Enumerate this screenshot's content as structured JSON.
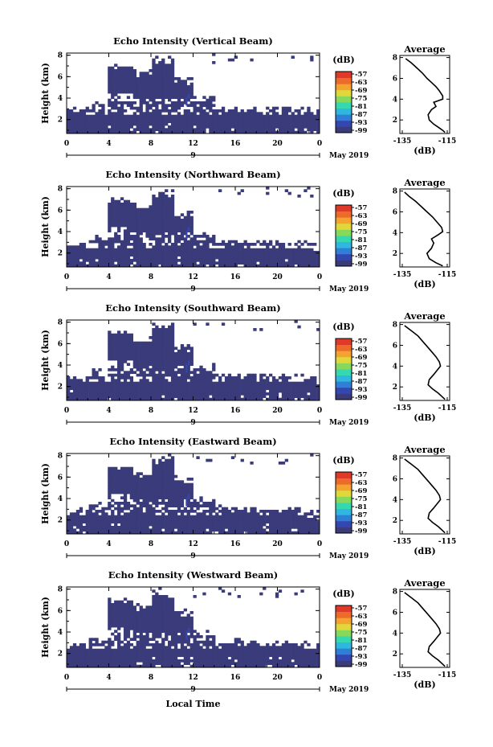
{
  "figure": {
    "xlabel": "Local Time",
    "ylabel": "Height (km)",
    "date_label": "May 2019",
    "colorbar_title": "(dB)",
    "avg_title": "Average",
    "avg_xlabel": "(dB)"
  },
  "colors": {
    "echo": "#3a3b7a",
    "colormap": [
      "#3a3b7a",
      "#3447b0",
      "#2f7fd6",
      "#2fb7e0",
      "#36d8b0",
      "#86d95a",
      "#e0d83a",
      "#f4a230",
      "#ec6a2a",
      "#de3a2a"
    ]
  },
  "chart_data": [
    {
      "type": "heatmap",
      "title": "Echo Intensity (Vertical Beam)",
      "x_ticks": [
        "0",
        "4",
        "8",
        "12",
        "16",
        "20",
        "0"
      ],
      "x_range": [
        0,
        24
      ],
      "day_label": "9",
      "y_ticks": [
        "2",
        "4",
        "6",
        "8"
      ],
      "y_range": [
        0.7,
        8.2
      ],
      "colorbar_ticks": [
        "-57",
        "-63",
        "-69",
        "-75",
        "-81",
        "-87",
        "-93",
        "-99"
      ],
      "average_profile": {
        "x_range": [
          -135,
          -115
        ],
        "x_ticks": [
          "-135",
          "-115"
        ],
        "y_ticks": [
          "2",
          "4",
          "6",
          "8"
        ],
        "y_range": [
          0.7,
          8.2
        ],
        "heights": [
          0.8,
          1.0,
          1.3,
          1.6,
          2.0,
          2.5,
          3.0,
          3.3,
          3.7,
          4.0,
          4.3,
          4.8,
          5.2,
          5.6,
          6.0,
          6.5,
          7.0,
          7.5,
          7.9
        ],
        "values": [
          -116,
          -117,
          -119,
          -121,
          -123,
          -123.5,
          -122,
          -120,
          -121,
          -117,
          -117,
          -118.5,
          -120,
          -122,
          -124,
          -126,
          -128.5,
          -131,
          -133.5
        ]
      }
    },
    {
      "type": "heatmap",
      "title": "Echo Intensity (Northward Beam)",
      "x_ticks": [
        "0",
        "4",
        "8",
        "12",
        "16",
        "20",
        "0"
      ],
      "x_range": [
        0,
        24
      ],
      "day_label": "9",
      "y_ticks": [
        "2",
        "4",
        "6",
        "8"
      ],
      "y_range": [
        0.7,
        8.2
      ],
      "colorbar_ticks": [
        "-57",
        "-63",
        "-69",
        "-75",
        "-81",
        "-87",
        "-93",
        "-99"
      ],
      "average_profile": {
        "x_range": [
          -135,
          -115
        ],
        "x_ticks": [
          "-135",
          "-115"
        ],
        "y_ticks": [
          "2",
          "4",
          "6",
          "8"
        ],
        "y_range": [
          0.7,
          8.2
        ],
        "heights": [
          0.8,
          1.1,
          1.5,
          2.0,
          2.5,
          3.0,
          3.4,
          3.8,
          4.1,
          4.5,
          5.0,
          5.5,
          6.0,
          6.5,
          7.0,
          7.5,
          7.9
        ],
        "values": [
          -117,
          -120,
          -123,
          -124,
          -122,
          -121,
          -122,
          -119,
          -117,
          -117.5,
          -119.5,
          -121.5,
          -124,
          -126.5,
          -129,
          -132,
          -134
        ]
      }
    },
    {
      "type": "heatmap",
      "title": "Echo Intensity (Southward Beam)",
      "x_ticks": [
        "0",
        "4",
        "8",
        "12",
        "16",
        "20",
        "0"
      ],
      "x_range": [
        0,
        24
      ],
      "day_label": "9",
      "y_ticks": [
        "2",
        "4",
        "6",
        "8"
      ],
      "y_range": [
        0.7,
        8.2
      ],
      "colorbar_ticks": [
        "-57",
        "-63",
        "-69",
        "-75",
        "-81",
        "-87",
        "-93",
        "-99"
      ],
      "average_profile": {
        "x_range": [
          -135,
          -115
        ],
        "x_ticks": [
          "-135",
          "-115"
        ],
        "y_ticks": [
          "2",
          "4",
          "6",
          "8"
        ],
        "y_range": [
          0.7,
          8.2
        ],
        "heights": [
          0.8,
          1.0,
          1.4,
          1.8,
          2.2,
          2.7,
          3.2,
          3.6,
          4.0,
          4.4,
          4.9,
          5.4,
          5.9,
          6.4,
          6.9,
          7.4,
          7.9
        ],
        "values": [
          -116,
          -117,
          -119,
          -121.5,
          -123.5,
          -123,
          -121,
          -119.5,
          -118,
          -118.5,
          -120,
          -122,
          -124,
          -126,
          -128,
          -131,
          -134
        ]
      }
    },
    {
      "type": "heatmap",
      "title": "Echo Intensity (Eastward Beam)",
      "x_ticks": [
        "0",
        "4",
        "8",
        "12",
        "16",
        "20",
        "0"
      ],
      "x_range": [
        0,
        24
      ],
      "day_label": "9",
      "y_ticks": [
        "2",
        "4",
        "6",
        "8"
      ],
      "y_range": [
        0.7,
        8.2
      ],
      "colorbar_ticks": [
        "-57",
        "-63",
        "-69",
        "-75",
        "-81",
        "-87",
        "-93",
        "-99"
      ],
      "average_profile": {
        "x_range": [
          -135,
          -115
        ],
        "x_ticks": [
          "-135",
          "-115"
        ],
        "y_ticks": [
          "2",
          "4",
          "6",
          "8"
        ],
        "y_range": [
          0.7,
          8.2
        ],
        "heights": [
          0.8,
          1.0,
          1.4,
          1.8,
          2.2,
          2.7,
          3.2,
          3.6,
          4.0,
          4.4,
          4.9,
          5.4,
          5.9,
          6.4,
          6.9,
          7.4,
          7.9
        ],
        "values": [
          -116,
          -117,
          -119,
          -121.5,
          -123.5,
          -123,
          -121,
          -119.5,
          -118,
          -118.5,
          -120,
          -122,
          -124,
          -126,
          -128,
          -131,
          -134
        ]
      }
    },
    {
      "type": "heatmap",
      "title": "Echo Intensity (Westward Beam)",
      "x_ticks": [
        "0",
        "4",
        "8",
        "12",
        "16",
        "20",
        "0"
      ],
      "x_range": [
        0,
        24
      ],
      "day_label": "9",
      "y_ticks": [
        "2",
        "4",
        "6",
        "8"
      ],
      "y_range": [
        0.7,
        8.2
      ],
      "colorbar_ticks": [
        "-57",
        "-63",
        "-69",
        "-75",
        "-81",
        "-87",
        "-93",
        "-99"
      ],
      "average_profile": {
        "x_range": [
          -135,
          -115
        ],
        "x_ticks": [
          "-135",
          "-115"
        ],
        "y_ticks": [
          "2",
          "4",
          "6",
          "8"
        ],
        "y_range": [
          0.7,
          8.2
        ],
        "heights": [
          0.8,
          1.0,
          1.4,
          1.8,
          2.2,
          2.7,
          3.2,
          3.6,
          4.0,
          4.4,
          4.9,
          5.4,
          5.9,
          6.4,
          6.9,
          7.4,
          7.9
        ],
        "values": [
          -116,
          -117,
          -119,
          -121.5,
          -123.5,
          -123,
          -121,
          -119.5,
          -118,
          -118.5,
          -120,
          -122,
          -124,
          -126,
          -128,
          -131,
          -134
        ]
      }
    }
  ]
}
